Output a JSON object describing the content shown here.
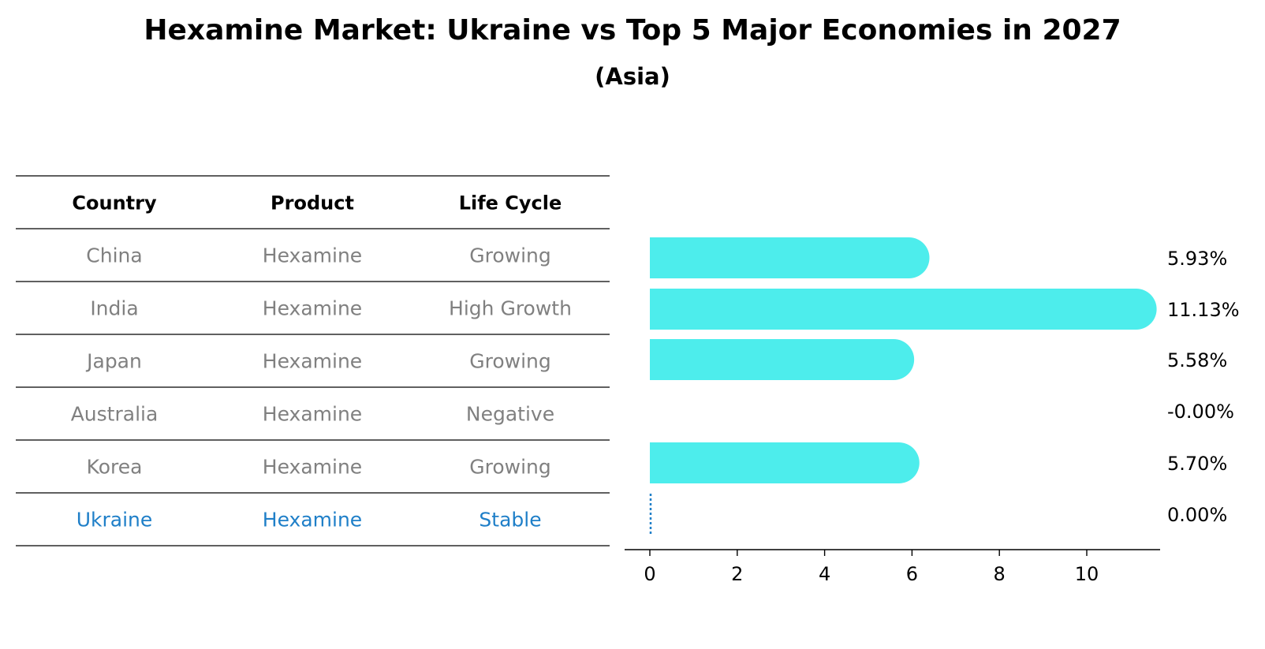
{
  "title": "Hexamine Market: Ukraine vs Top 5 Major Economies in 2027",
  "subtitle": "(Asia)",
  "table": {
    "headers": [
      "Country",
      "Product",
      "Life Cycle"
    ],
    "rows": [
      {
        "country": "China",
        "product": "Hexamine",
        "life_cycle": "Growing",
        "highlight": false
      },
      {
        "country": "India",
        "product": "Hexamine",
        "life_cycle": "High Growth",
        "highlight": false
      },
      {
        "country": "Japan",
        "product": "Hexamine",
        "life_cycle": "Growing",
        "highlight": false
      },
      {
        "country": "Australia",
        "product": "Hexamine",
        "life_cycle": "Negative",
        "highlight": false
      },
      {
        "country": "Korea",
        "product": "Hexamine",
        "life_cycle": "Growing",
        "highlight": false
      },
      {
        "country": "Ukraine",
        "product": "Hexamine",
        "life_cycle": "Stable",
        "highlight": true
      }
    ]
  },
  "chart_data": {
    "type": "bar",
    "orientation": "horizontal",
    "categories": [
      "China",
      "India",
      "Japan",
      "Australia",
      "Korea",
      "Ukraine"
    ],
    "values": [
      5.93,
      11.13,
      5.58,
      -0.0,
      5.7,
      0.0
    ],
    "value_labels": [
      "5.93%",
      "11.13%",
      "5.58%",
      "-0.00%",
      "5.70%",
      "0.00%"
    ],
    "xticks": [
      0,
      2,
      4,
      6,
      8,
      10
    ],
    "xlim": [
      -0.57,
      11.7
    ],
    "grid": false,
    "legend": "none"
  },
  "colors": {
    "bar": "#4dedec",
    "highlight": "#1f7fc8",
    "muted_text": "#808080",
    "text": "#000000"
  }
}
